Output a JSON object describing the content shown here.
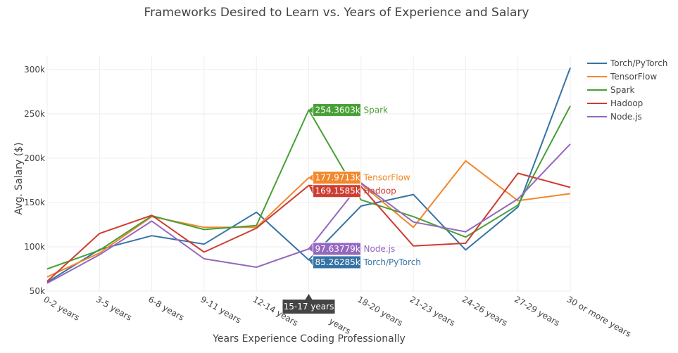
{
  "chart_data": {
    "type": "line",
    "title": "Frameworks Desired to Learn vs. Years of Experience and Salary",
    "xlabel": "Years Experience Coding Professionally",
    "ylabel": "Avg. Salary ($)",
    "ylim": [
      50000,
      315000
    ],
    "yticks": [
      50000,
      100000,
      150000,
      200000,
      250000,
      300000
    ],
    "ytick_labels": [
      "50k",
      "100k",
      "150k",
      "200k",
      "250k",
      "300k"
    ],
    "grid": true,
    "legend_position": "top-right",
    "categories": [
      "0-2 years",
      "3-5 years",
      "6-8 years",
      "9-11 years",
      "12-14 years",
      "15-17 years",
      "18-20 years",
      "21-23 years",
      "24-26 years",
      "27-29 years",
      "30 or more years"
    ],
    "series": [
      {
        "name": "Torch/PyTorch",
        "color": "#3673a5",
        "values": [
          60000,
          97000,
          112500,
          103000,
          139000,
          85262.85,
          146000,
          159000,
          96500,
          145000,
          302000
        ]
      },
      {
        "name": "TensorFlow",
        "color": "#f2872b",
        "values": [
          66000,
          93000,
          134000,
          122000,
          122000,
          177971.3,
          171000,
          122000,
          197000,
          152000,
          160000
        ]
      },
      {
        "name": "Spark",
        "color": "#46a035",
        "values": [
          75000,
          96000,
          135000,
          119500,
          124000,
          254360.3,
          153000,
          134000,
          111000,
          147000,
          259000
        ]
      },
      {
        "name": "Hadoop",
        "color": "#cd3d31",
        "values": [
          61000,
          115000,
          135500,
          94000,
          121000,
          169158.5,
          168000,
          101000,
          104000,
          183000,
          167000
        ]
      },
      {
        "name": "Node.js",
        "color": "#9568bf",
        "values": [
          59000,
          91000,
          129000,
          86500,
          77000,
          97637.79,
          172000,
          128000,
          117000,
          154000,
          216000
        ]
      }
    ],
    "hover": {
      "category": "15-17 years",
      "labels": [
        {
          "series": "Spark",
          "value_text": "254.3603k",
          "color": "#46a035"
        },
        {
          "series": "TensorFlow",
          "value_text": "177.9713k",
          "color": "#f2872b"
        },
        {
          "series": "Hadoop",
          "value_text": "169.1585k",
          "color": "#cd3d31"
        },
        {
          "series": "Node.js",
          "value_text": "97.63779k",
          "color": "#9568bf"
        },
        {
          "series": "Torch/PyTorch",
          "value_text": "85.26285k",
          "color": "#3673a5"
        }
      ]
    }
  }
}
